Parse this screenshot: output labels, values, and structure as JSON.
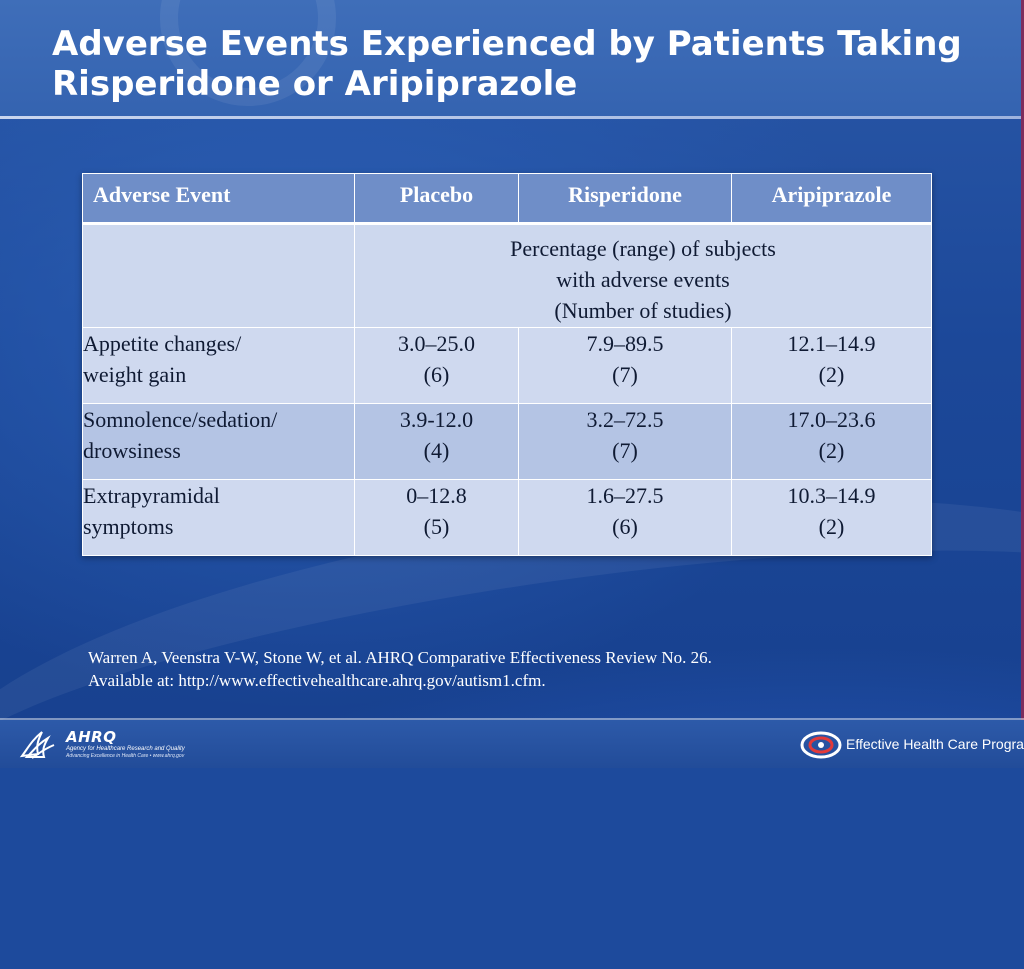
{
  "slide": {
    "title": "Adverse Events Experienced by Patients Taking\nRisperidone or Aripiprazole"
  },
  "table": {
    "headers": [
      "Adverse Event",
      "Placebo",
      "Risperidone",
      "Aripiprazole"
    ],
    "subheader": "Percentage (range) of subjects\nwith adverse events\n(Number of studies)",
    "rows": [
      {
        "event": "Appetite changes/\nweight gain",
        "placebo": {
          "range": "3.0–25.0",
          "studies": "(6)"
        },
        "risperidone": {
          "range": "7.9–89.5",
          "studies": "(7)"
        },
        "aripiprazole": {
          "range": "12.1–14.9",
          "studies": "(2)"
        }
      },
      {
        "event": "Somnolence/sedation/\ndrowsiness",
        "placebo": {
          "range": "3.9-12.0",
          "studies": "(4)"
        },
        "risperidone": {
          "range": "3.2–72.5",
          "studies": "(7)"
        },
        "aripiprazole": {
          "range": "17.0–23.6",
          "studies": "(2)"
        }
      },
      {
        "event": "Extrapyramidal\nsymptoms",
        "placebo": {
          "range": "0–12.8",
          "studies": "(5)"
        },
        "risperidone": {
          "range": "1.6–27.5",
          "studies": "(6)"
        },
        "aripiprazole": {
          "range": "10.3–14.9",
          "studies": "(2)"
        }
      }
    ]
  },
  "citation": "Warren A, Veenstra V-W, Stone W, et al. AHRQ Comparative Effectiveness Review No. 26.\nAvailable at:  http://www.effectivehealthcare.ahrq.gov/autism1.cfm.",
  "footer": {
    "ahrq_mark": "AHRQ",
    "ahrq_line1": "Agency for Healthcare Research and Quality",
    "ahrq_line2": "Advancing Excellence in Health Care • www.ahrq.gov",
    "program_label": "Effective Health Care Program"
  },
  "colors": {
    "background": "#1d4a9c",
    "header_row": "#6f8ec8",
    "row_light": "#cfd9ef",
    "row_dark": "#b4c4e4"
  },
  "icons": [
    "hhs-eagle-icon",
    "effective-health-care-logo-icon"
  ]
}
